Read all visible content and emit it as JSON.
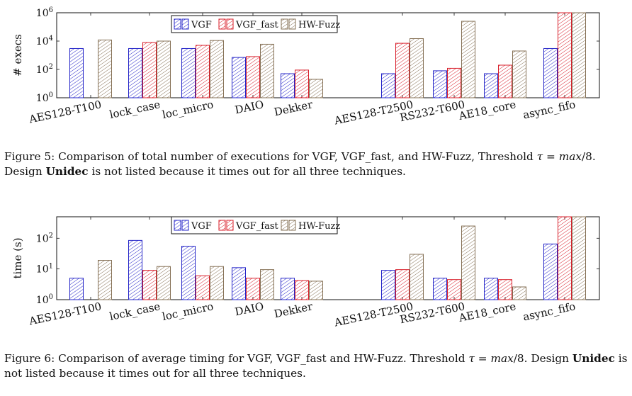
{
  "colors": {
    "VGF": "#2424c8",
    "VGF_fast": "#d81e2a",
    "HW-Fuzz": "#857055"
  },
  "chart_data": [
    {
      "type": "bar",
      "ylabel": "# execs",
      "yscale": "log",
      "ylim": [
        1,
        1000000
      ],
      "yticks": [
        {
          "v": 1,
          "m": "0"
        },
        {
          "v": 100,
          "m": "2"
        },
        {
          "v": 10000,
          "m": "4"
        },
        {
          "v": 1000000,
          "m": "6"
        }
      ],
      "legend_position": "top-right",
      "categories": [
        "AES128-T100",
        "lock_case",
        "loc_micro",
        "DAIO",
        "Dekker",
        "AES128-T2500",
        "RS232-T600",
        "AE18_core",
        "async_fifo"
      ],
      "series": [
        {
          "name": "VGF",
          "values": [
            3000,
            3000,
            3000,
            700,
            50,
            50,
            80,
            50,
            3000
          ]
        },
        {
          "name": "VGF_fast",
          "values": [
            null,
            8000,
            5000,
            800,
            90,
            7000,
            120,
            200,
            1000000
          ]
        },
        {
          "name": "HW-Fuzz",
          "values": [
            12000,
            10000,
            11000,
            6000,
            20,
            15000,
            250000,
            2000,
            1000000
          ]
        }
      ]
    },
    {
      "type": "bar",
      "ylabel": "time (s)",
      "yscale": "log",
      "ylim": [
        1,
        500
      ],
      "yticks": [
        {
          "v": 1,
          "m": "0"
        },
        {
          "v": 10,
          "m": "1"
        },
        {
          "v": 100,
          "m": "2"
        }
      ],
      "legend_position": "top-right",
      "categories": [
        "AES128-T100",
        "lock_case",
        "loc_micro",
        "DAIO",
        "Dekker",
        "AES128-T2500",
        "RS232-T600",
        "AE18_core",
        "async_fifo"
      ],
      "series": [
        {
          "name": "VGF",
          "values": [
            5,
            85,
            55,
            11,
            5,
            9,
            5,
            5,
            65
          ]
        },
        {
          "name": "VGF_fast",
          "values": [
            null,
            9,
            6,
            5,
            4.2,
            9.5,
            4.5,
            4.5,
            500
          ]
        },
        {
          "name": "HW-Fuzz",
          "values": [
            19,
            12,
            12,
            9.5,
            4,
            30,
            250,
            2.6,
            500
          ]
        }
      ]
    }
  ],
  "captions": [
    {
      "prefix": "Figure 5:  Comparison of total number of executions for VGF, VGF_fast, and HW-Fuzz, Threshold ",
      "tau": "τ",
      "eq": " = ",
      "max": "max",
      "rest1": "/8. Design ",
      "bold": "Unidec",
      "rest2": " is not listed because it times out for all three techniques."
    },
    {
      "prefix": "Figure 6:  Comparison of average timing for VGF, VGF_fast and HW-Fuzz.  Threshold ",
      "tau": "τ",
      "eq": " = ",
      "max": "max",
      "rest1": "/8.  Design ",
      "bold": "Unidec",
      "rest2": " is not listed because it times out for all three techniques."
    }
  ]
}
